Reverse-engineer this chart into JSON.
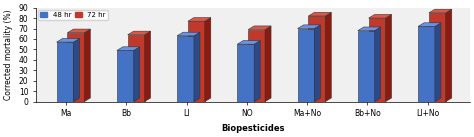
{
  "categories": [
    "Ma",
    "Bb",
    "LI",
    "NO",
    "Ma+No",
    "Bb+No",
    "LI+No"
  ],
  "values_48hr": [
    57,
    49,
    63,
    55,
    70,
    68,
    72
  ],
  "values_72hr": [
    66,
    64,
    77,
    69,
    82,
    80,
    85
  ],
  "color_48hr": "#4472c4",
  "color_72hr": "#c0392b",
  "color_48hr_side": "#2a4a8a",
  "color_72hr_side": "#8b1a10",
  "color_48hr_top": "#6a92e4",
  "color_72hr_top": "#e05545",
  "ylabel": "Corrected mortality (%)",
  "xlabel": "Biopesticides",
  "legend_48": "48 hr",
  "legend_72": "72 hr",
  "ylim": [
    0,
    90
  ],
  "yticks": [
    0,
    10,
    20,
    30,
    40,
    50,
    60,
    70,
    80,
    90
  ],
  "bg_color": "#ffffff",
  "plot_bg": "#f0f0f0"
}
